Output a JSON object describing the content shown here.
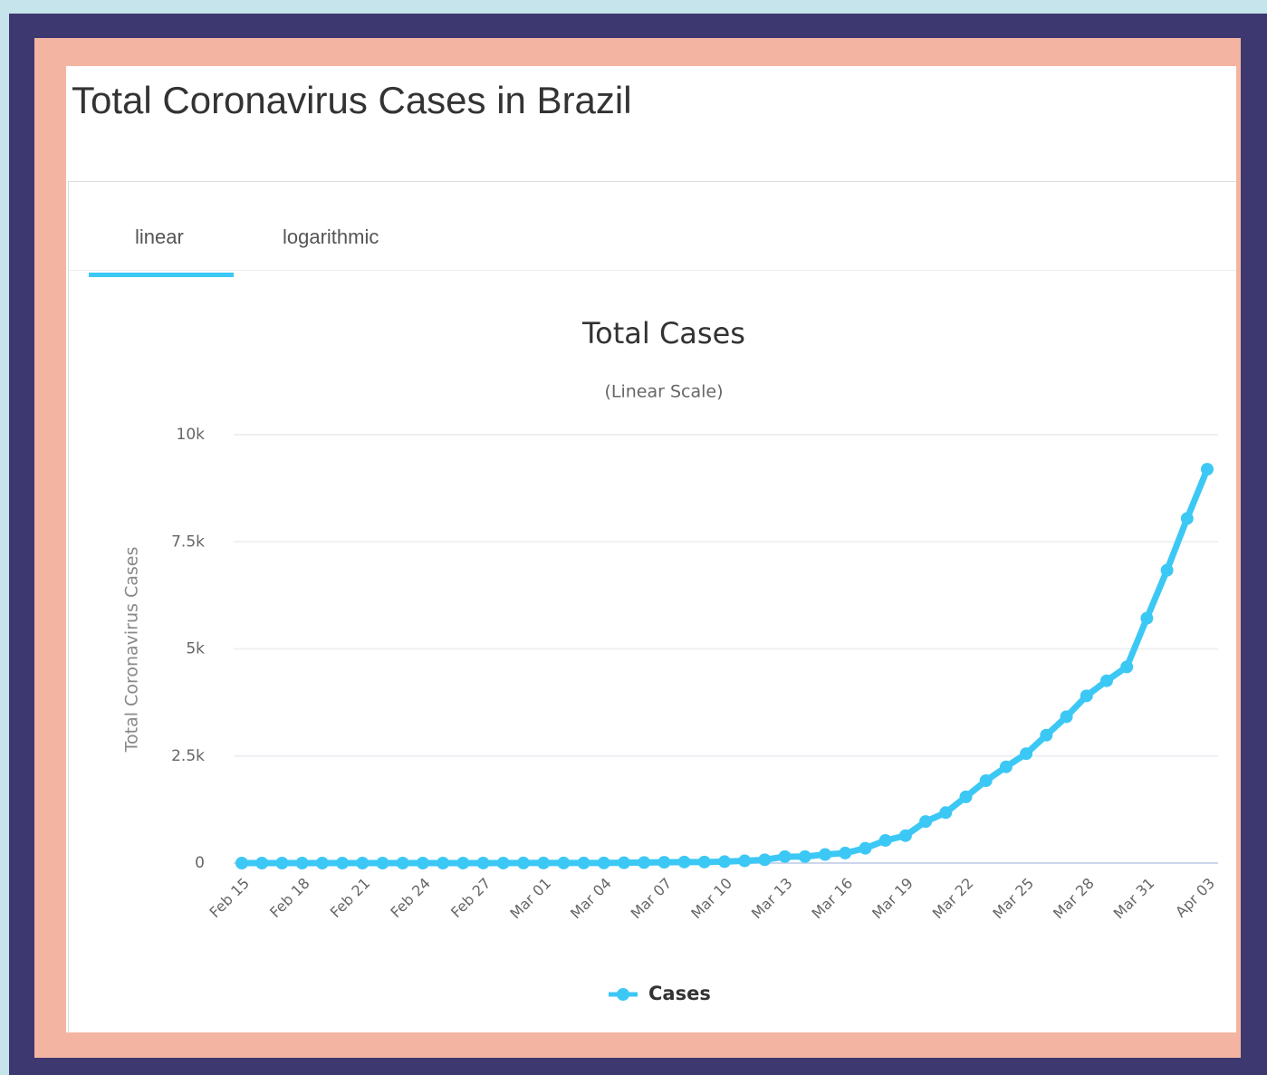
{
  "header": {
    "title": "Total Coronavirus Cases in Brazil"
  },
  "tabs": [
    "linear",
    "logarithmic"
  ],
  "chart_data": {
    "type": "line",
    "title": "Total Cases",
    "subtitle": "(Linear Scale)",
    "y_label": "Total Coronavirus Cases",
    "categories": [
      "Feb 15",
      null,
      null,
      "Feb 18",
      null,
      null,
      "Feb 21",
      null,
      null,
      "Feb 24",
      null,
      null,
      "Feb 27",
      null,
      null,
      "Mar 01",
      null,
      null,
      "Mar 04",
      null,
      null,
      "Mar 07",
      null,
      null,
      "Mar 10",
      null,
      null,
      "Mar 13",
      null,
      null,
      "Mar 16",
      null,
      null,
      "Mar 19",
      null,
      null,
      "Mar 22",
      null,
      null,
      "Mar 25",
      null,
      null,
      "Mar 28",
      null,
      null,
      "Mar 31",
      null,
      null,
      "Apr 03"
    ],
    "series": [
      {
        "name": "Cases",
        "color": "#3cc8f5",
        "values": [
          0,
          0,
          0,
          0,
          0,
          0,
          0,
          0,
          0,
          0,
          0,
          1,
          1,
          1,
          2,
          2,
          2,
          2,
          3,
          8,
          13,
          19,
          25,
          25,
          34,
          52,
          77,
          151,
          151,
          200,
          234,
          346,
          529,
          640,
          970,
          1178,
          1546,
          1924,
          2247,
          2554,
          2985,
          3417,
          3904,
          4256,
          4579,
          5717,
          6836,
          8044,
          9194
        ]
      }
    ],
    "ylim": [
      0,
      10000
    ],
    "yticks": [
      0,
      {
        "value": 2500,
        "label": "2.5k"
      },
      {
        "value": 5000,
        "label": "5k"
      },
      {
        "value": 7500,
        "label": "7.5k"
      },
      {
        "value": 10000,
        "label": "10k"
      }
    ],
    "grid": true,
    "legend": "bottom"
  }
}
